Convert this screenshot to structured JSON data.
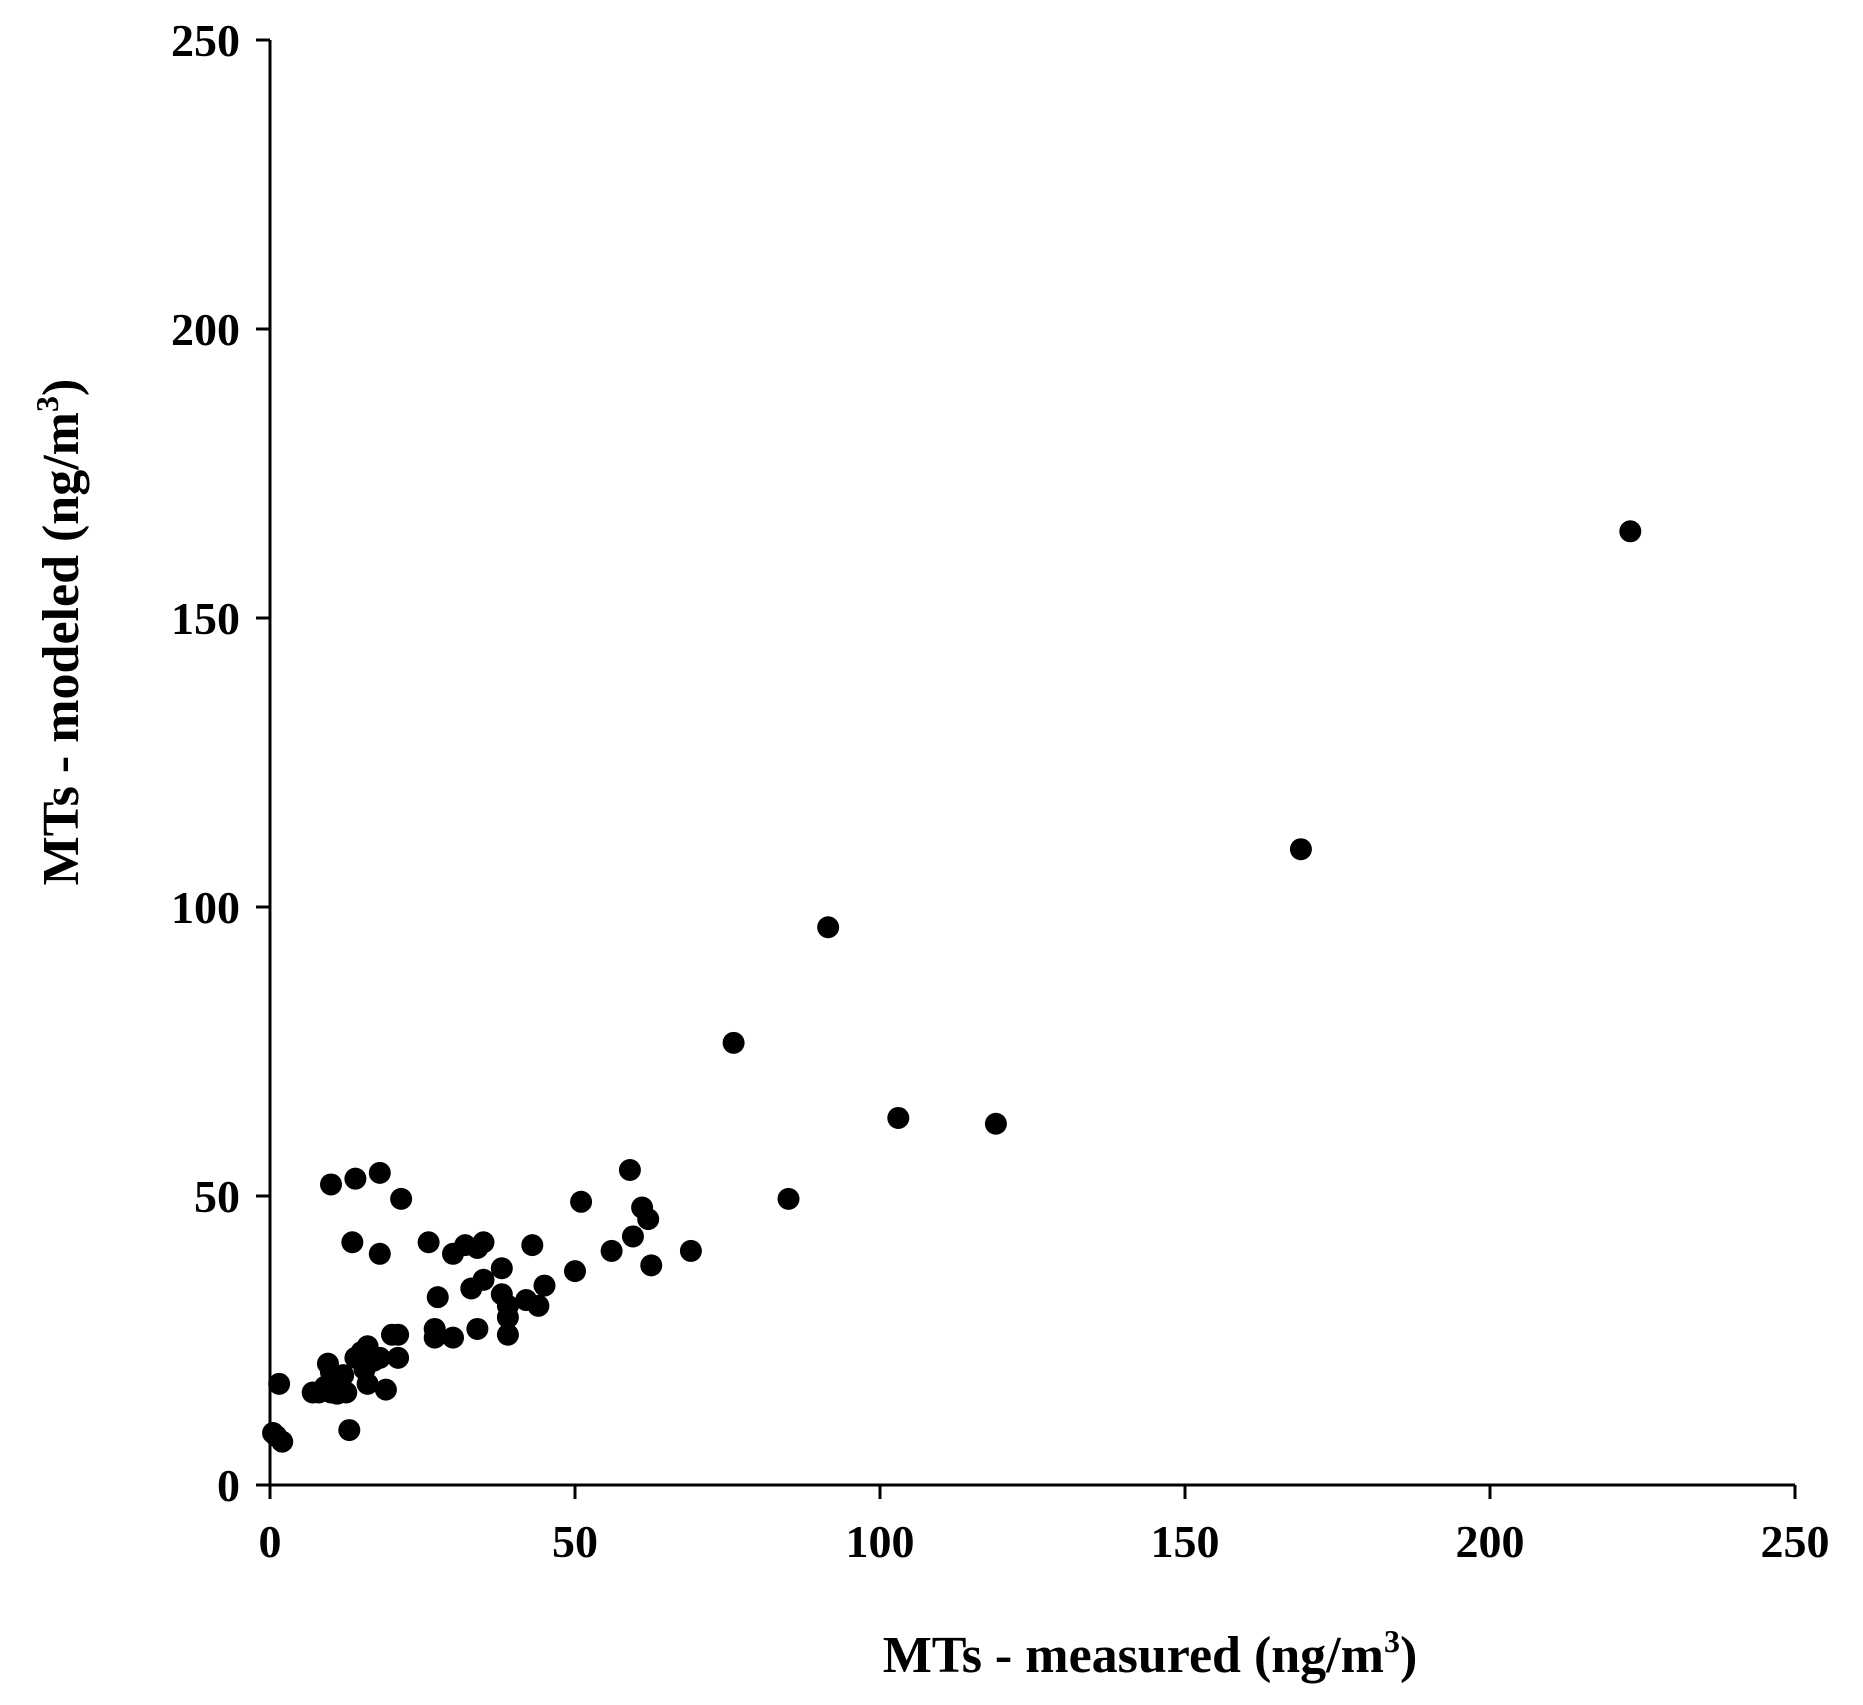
{
  "chart_data": {
    "type": "scatter",
    "title": "",
    "xlabel": {
      "main": "MTs - measured (ng/m",
      "sup": "3",
      "close": ")"
    },
    "ylabel": {
      "main": "MTs - modeled (ng/m",
      "sup": "3",
      "close": ")"
    },
    "xlim": [
      0,
      250
    ],
    "ylim": [
      0,
      250
    ],
    "xticks": [
      0,
      50,
      100,
      150,
      200,
      250
    ],
    "yticks": [
      0,
      50,
      100,
      150,
      200,
      250
    ],
    "grid": false,
    "legend": "none",
    "marker_color": "#000000",
    "series": [
      {
        "points": [
          [
            0.5,
            9
          ],
          [
            1,
            8.5
          ],
          [
            2,
            7.5
          ],
          [
            1.5,
            17.5
          ],
          [
            7,
            16
          ],
          [
            8,
            16
          ],
          [
            9,
            17
          ],
          [
            9.5,
            21
          ],
          [
            10,
            19.5
          ],
          [
            10.5,
            18
          ],
          [
            10,
            16
          ],
          [
            11,
            15.8
          ],
          [
            11,
            16.5
          ],
          [
            12,
            19
          ],
          [
            12.5,
            16
          ],
          [
            13,
            9.5
          ],
          [
            14,
            22
          ],
          [
            15,
            23
          ],
          [
            15.5,
            20
          ],
          [
            16,
            24
          ],
          [
            16,
            17.5
          ],
          [
            17,
            21.5
          ],
          [
            18,
            22
          ],
          [
            19,
            16.5
          ],
          [
            20,
            26
          ],
          [
            21,
            26
          ],
          [
            21,
            22
          ],
          [
            10,
            52
          ],
          [
            13.5,
            42
          ],
          [
            14,
            53
          ],
          [
            18,
            54
          ],
          [
            18,
            40
          ],
          [
            21.5,
            49.5
          ],
          [
            26,
            42
          ],
          [
            27,
            27
          ],
          [
            27.5,
            32.5
          ],
          [
            27,
            25.5
          ],
          [
            30,
            25.5
          ],
          [
            30,
            40
          ],
          [
            32,
            41.5
          ],
          [
            33,
            34
          ],
          [
            34,
            27
          ],
          [
            34,
            41
          ],
          [
            35,
            35.5
          ],
          [
            35,
            42
          ],
          [
            38,
            37.5
          ],
          [
            38,
            33
          ],
          [
            39,
            31
          ],
          [
            39,
            29
          ],
          [
            39,
            26
          ],
          [
            42,
            32
          ],
          [
            43,
            41.5
          ],
          [
            44,
            31
          ],
          [
            45,
            34.5
          ],
          [
            50,
            37
          ],
          [
            51,
            49
          ],
          [
            56,
            40.5
          ],
          [
            59,
            54.5
          ],
          [
            59.5,
            43
          ],
          [
            61,
            48
          ],
          [
            62,
            46
          ],
          [
            62.5,
            38
          ],
          [
            69,
            40.5
          ],
          [
            76,
            76.5
          ],
          [
            85,
            49.5
          ],
          [
            91.5,
            96.5
          ],
          [
            103,
            63.5
          ],
          [
            119,
            62.5
          ],
          [
            169,
            110
          ],
          [
            223,
            165
          ]
        ]
      }
    ]
  }
}
